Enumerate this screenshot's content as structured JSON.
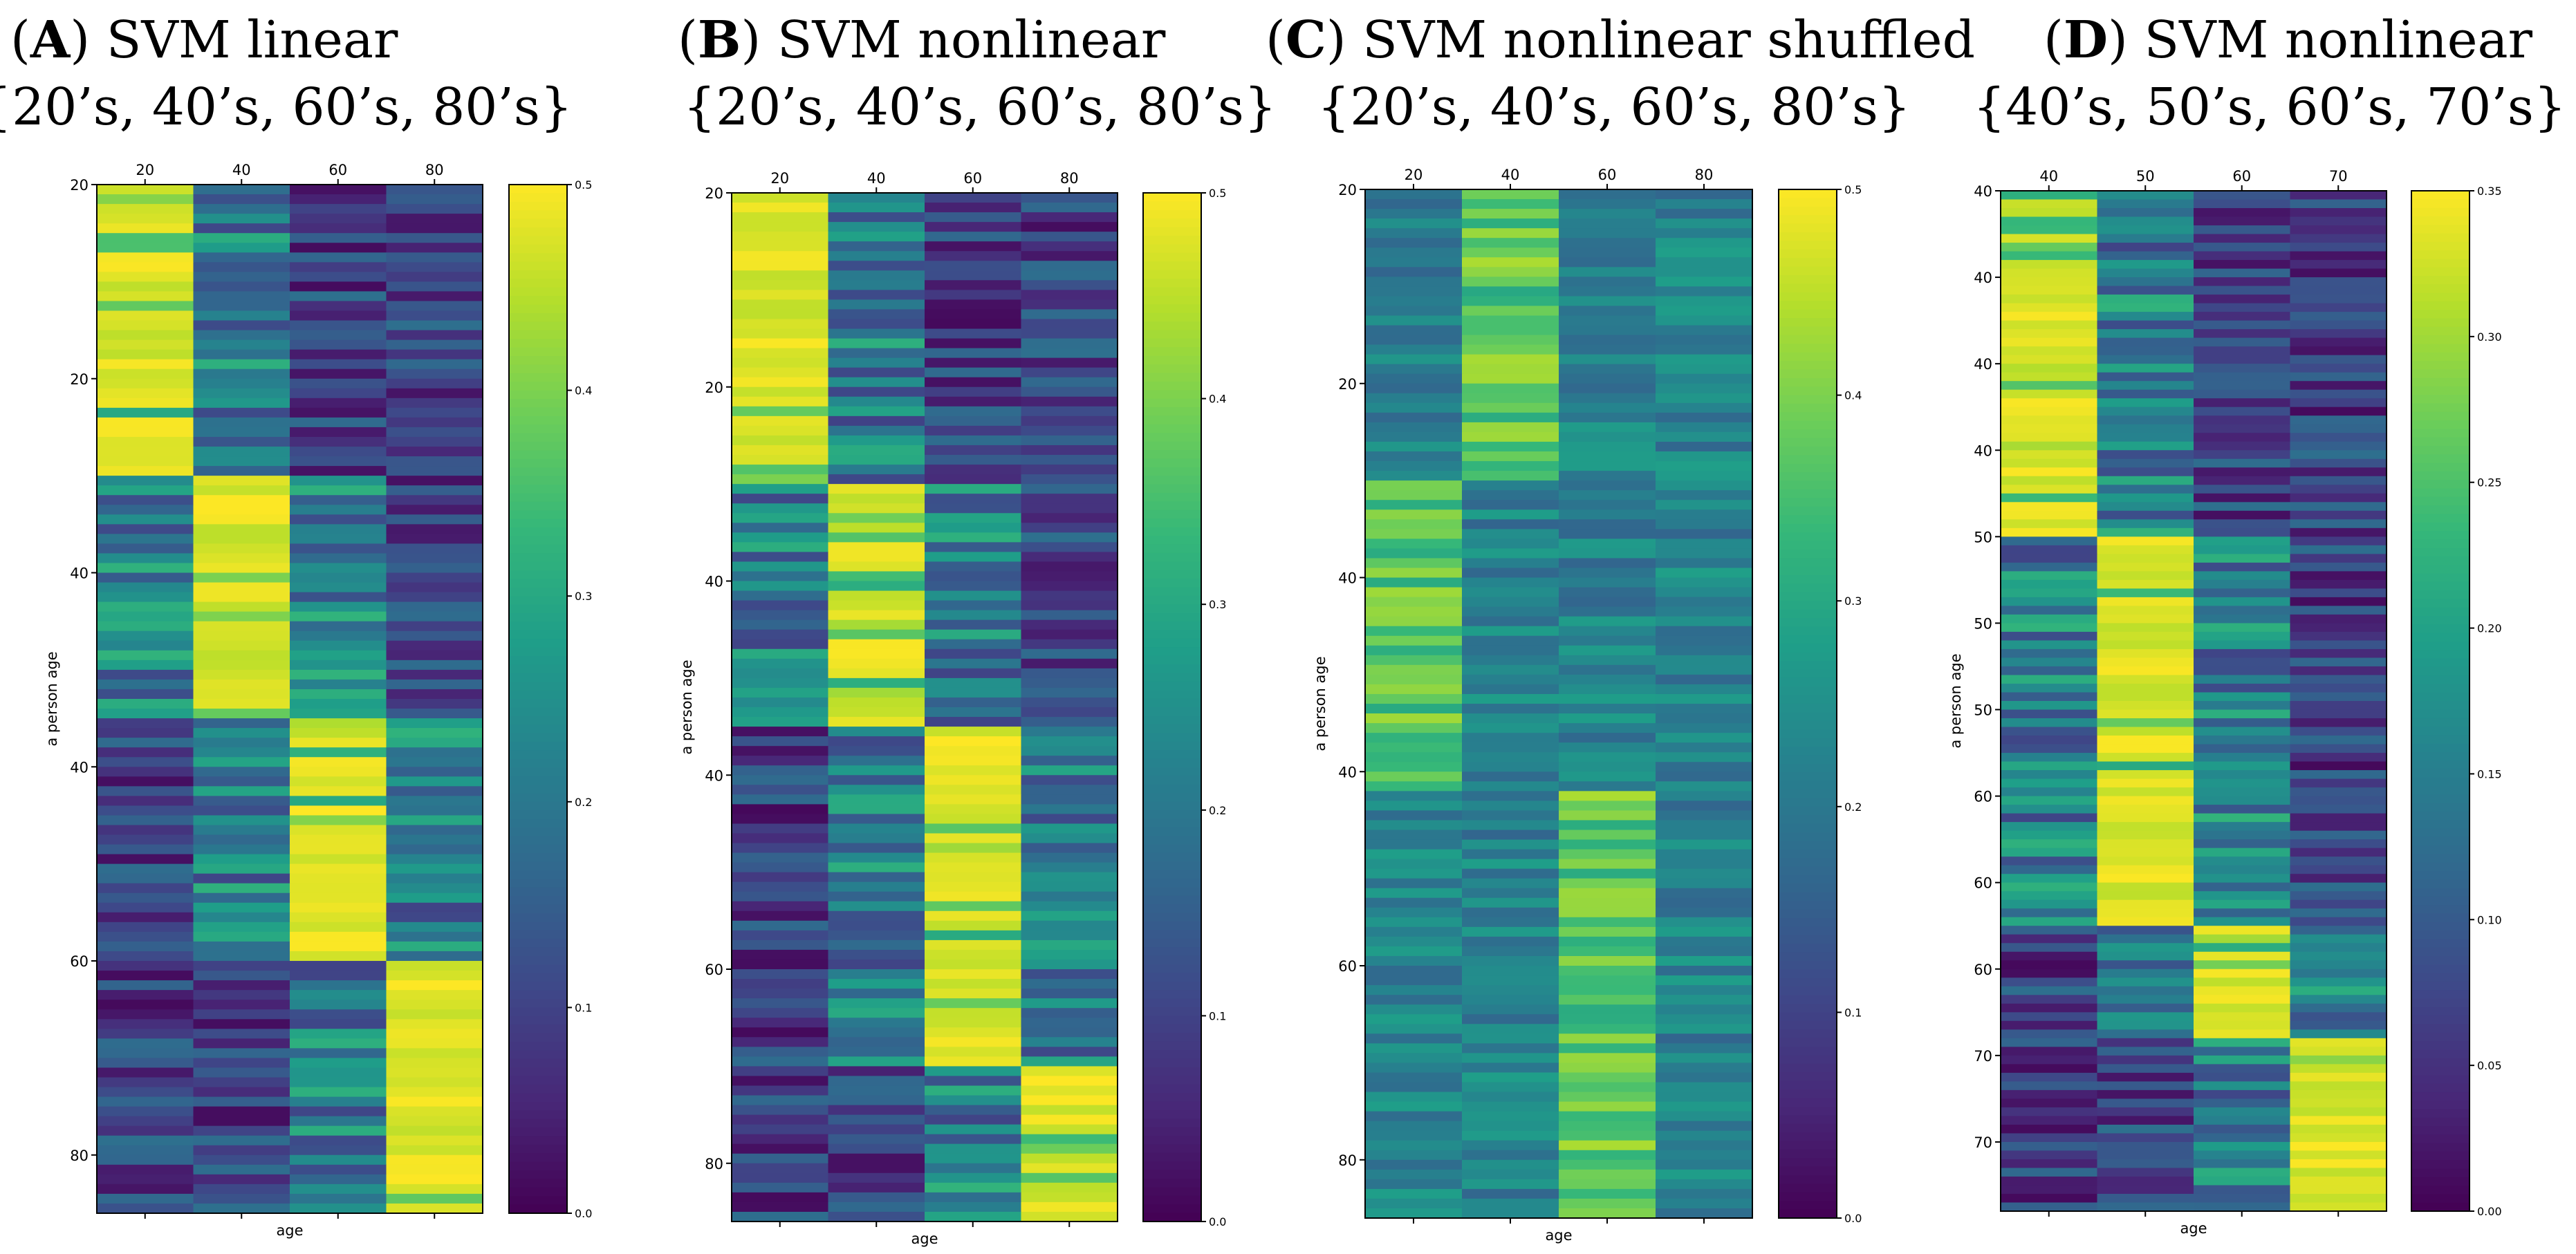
{
  "chart_data": [
    {
      "type": "heatmap",
      "panel_letter": "A",
      "title": "SVM linear",
      "subtitle": "{20’s, 40’s, 60’s, 80’s}",
      "xlabel": "age",
      "ylabel": "a person age",
      "columns": [
        "20",
        "40",
        "60",
        "80"
      ],
      "row_tick_labels": [
        "20",
        "20",
        "40",
        "40",
        "60",
        "80"
      ],
      "row_tick_positions": [
        0,
        20,
        40,
        60,
        80,
        100
      ],
      "colorbar_ticks": [
        "0.0",
        "0.1",
        "0.2",
        "0.3",
        "0.4",
        "0.5"
      ],
      "colorbar_range": [
        0,
        0.5
      ],
      "n_rows": 106,
      "blocks": [
        {
          "start": 0,
          "end": 30,
          "high_col": 0
        },
        {
          "start": 30,
          "end": 55,
          "high_col": 1
        },
        {
          "start": 55,
          "end": 80,
          "high_col": 2
        },
        {
          "start": 80,
          "end": 106,
          "high_col": 3
        }
      ]
    },
    {
      "type": "heatmap",
      "panel_letter": "B",
      "title": "SVM nonlinear",
      "subtitle": "{20’s, 40’s, 60’s, 80’s}",
      "xlabel": "age",
      "ylabel": "a person age",
      "columns": [
        "20",
        "40",
        "60",
        "80"
      ],
      "row_tick_labels": [
        "20",
        "20",
        "40",
        "40",
        "60",
        "80"
      ],
      "row_tick_positions": [
        0,
        20,
        40,
        60,
        80,
        100
      ],
      "colorbar_ticks": [
        "0.0",
        "0.1",
        "0.2",
        "0.3",
        "0.4",
        "0.5"
      ],
      "colorbar_range": [
        0,
        0.5
      ],
      "n_rows": 106,
      "blocks": [
        {
          "start": 0,
          "end": 30,
          "high_col": 0
        },
        {
          "start": 30,
          "end": 55,
          "high_col": 1
        },
        {
          "start": 55,
          "end": 90,
          "high_col": 2
        },
        {
          "start": 90,
          "end": 106,
          "high_col": 3
        }
      ]
    },
    {
      "type": "heatmap",
      "panel_letter": "C",
      "title": "SVM nonlinear shuffled",
      "subtitle": "{20’s, 40’s, 60’s, 80’s}",
      "xlabel": "age",
      "ylabel": "a person age",
      "columns": [
        "20",
        "40",
        "60",
        "80"
      ],
      "row_tick_labels": [
        "20",
        "20",
        "40",
        "40",
        "60",
        "80"
      ],
      "row_tick_positions": [
        0,
        20,
        40,
        60,
        80,
        100
      ],
      "colorbar_ticks": [
        "0.0",
        "0.1",
        "0.2",
        "0.3",
        "0.4",
        "0.5"
      ],
      "colorbar_range": [
        0,
        0.5
      ],
      "n_rows": 106,
      "blocks": [
        {
          "start": 0,
          "end": 30,
          "high_col": 1
        },
        {
          "start": 30,
          "end": 62,
          "high_col": 0
        },
        {
          "start": 62,
          "end": 106,
          "high_col": 2
        }
      ]
    },
    {
      "type": "heatmap",
      "panel_letter": "D",
      "title": "SVM nonlinear",
      "subtitle": "{40’s, 50’s, 60’s, 70’s}",
      "xlabel": "age",
      "ylabel": "a person age",
      "columns": [
        "40",
        "50",
        "60",
        "70"
      ],
      "row_tick_labels": [
        "40",
        "40",
        "40",
        "40",
        "50",
        "50",
        "50",
        "60",
        "60",
        "60",
        "70",
        "70"
      ],
      "row_tick_positions": [
        0,
        10,
        20,
        30,
        40,
        50,
        60,
        70,
        80,
        90,
        100,
        110
      ],
      "colorbar_ticks": [
        "0.00",
        "0.05",
        "0.10",
        "0.15",
        "0.20",
        "0.25",
        "0.30",
        "0.35"
      ],
      "colorbar_range": [
        0,
        0.35
      ],
      "n_rows": 118,
      "blocks": [
        {
          "start": 0,
          "end": 40,
          "high_col": 0
        },
        {
          "start": 40,
          "end": 85,
          "high_col": 1
        },
        {
          "start": 85,
          "end": 98,
          "high_col": 2
        },
        {
          "start": 98,
          "end": 118,
          "high_col": 3
        }
      ]
    }
  ]
}
